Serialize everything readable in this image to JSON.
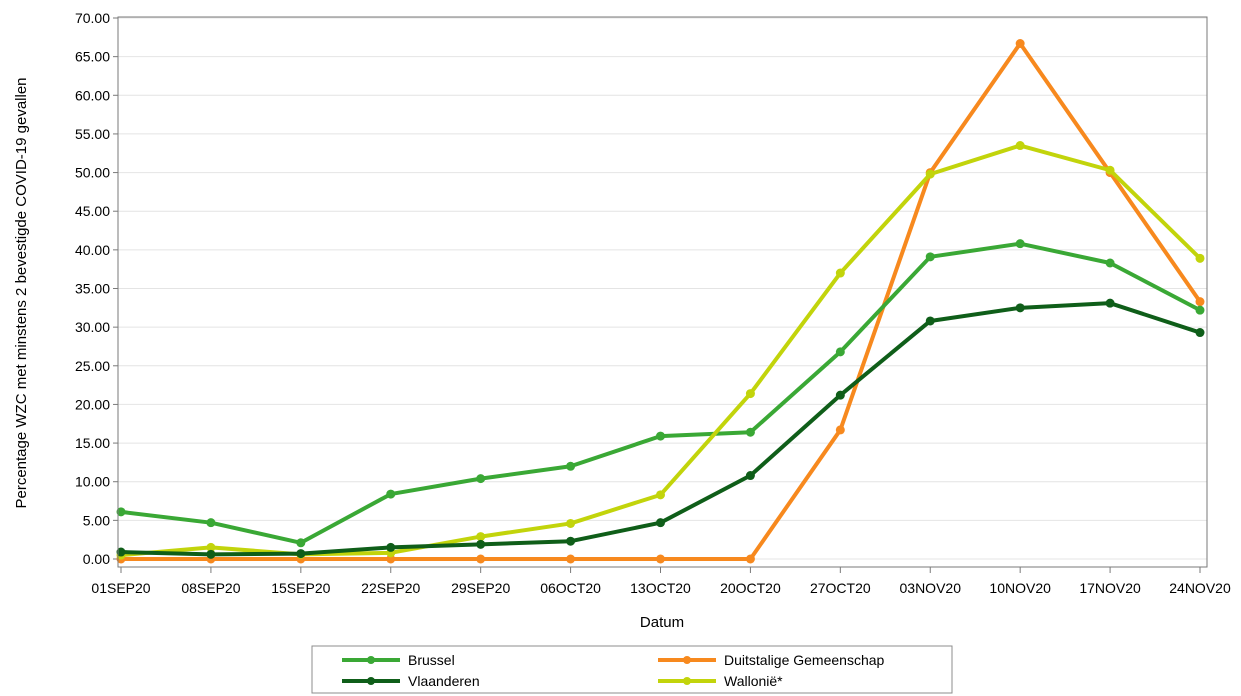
{
  "chart_data": {
    "type": "line",
    "title": "",
    "xlabel": "Datum",
    "ylabel": "Percentage WZC met minstens 2 bevestigde COVID-19 gevallen",
    "categories": [
      "01SEP20",
      "08SEP20",
      "15SEP20",
      "22SEP20",
      "29SEP20",
      "06OCT20",
      "13OCT20",
      "20OCT20",
      "27OCT20",
      "03NOV20",
      "10NOV20",
      "17NOV20",
      "24NOV20"
    ],
    "yticks": [
      "0.00",
      "5.00",
      "10.00",
      "15.00",
      "20.00",
      "25.00",
      "30.00",
      "35.00",
      "40.00",
      "45.00",
      "50.00",
      "55.00",
      "60.00",
      "65.00",
      "70.00"
    ],
    "ylim": [
      0,
      70
    ],
    "grid": true,
    "legend_position": "bottom",
    "series": [
      {
        "name": "Brussel",
        "color": "#3aa835",
        "values": [
          6.1,
          4.7,
          2.1,
          8.4,
          10.4,
          12.0,
          15.9,
          16.4,
          26.8,
          39.1,
          40.8,
          38.3,
          32.2
        ]
      },
      {
        "name": "Duitstalige Gemeenschap",
        "color": "#f7891e",
        "values": [
          0,
          0,
          0,
          0,
          0,
          0,
          0,
          0,
          16.7,
          50.0,
          66.7,
          50.0,
          33.3
        ]
      },
      {
        "name": "Vlaanderen",
        "color": "#0f5e19",
        "values": [
          0.9,
          0.6,
          0.7,
          1.5,
          1.9,
          2.3,
          4.7,
          10.8,
          21.2,
          30.8,
          32.5,
          33.1,
          29.3
        ]
      },
      {
        "name": "Wallonië*",
        "color": "#c2d40b",
        "values": [
          0.5,
          1.5,
          0.6,
          0.8,
          2.9,
          4.6,
          8.3,
          21.4,
          37.0,
          49.8,
          53.5,
          50.3,
          38.9
        ]
      }
    ]
  },
  "legend": {
    "items": [
      {
        "label": "Brussel"
      },
      {
        "label": "Duitstalige Gemeenschap"
      },
      {
        "label": "Vlaanderen"
      },
      {
        "label": "Wallonië*"
      }
    ]
  }
}
